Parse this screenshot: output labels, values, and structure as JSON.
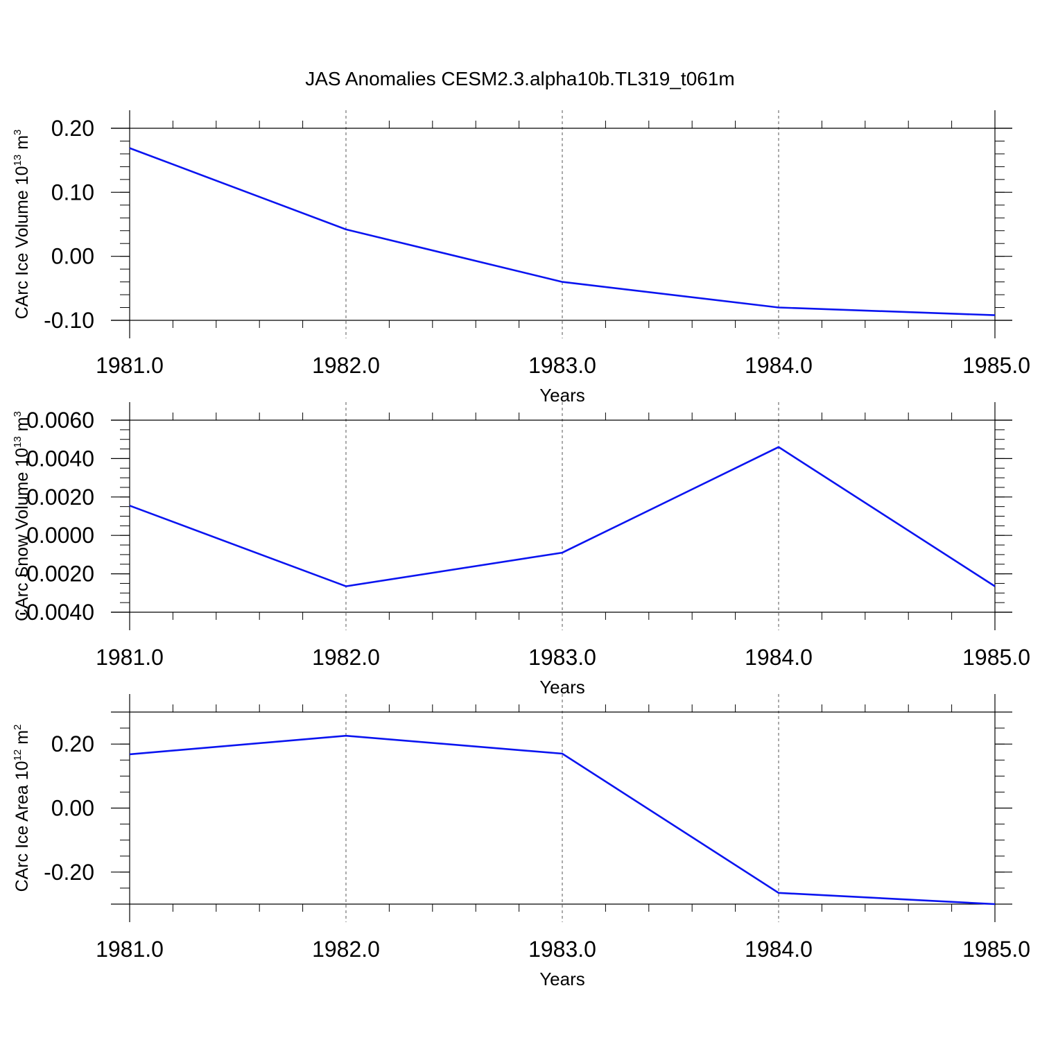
{
  "figure": {
    "title": "JAS Anomalies CESM2.3.alpha10b.TL319_t061m"
  },
  "colors": {
    "line": "#0a14f0",
    "axis": "#000000",
    "grid": "#555555",
    "background": "#ffffff"
  },
  "chart_data": [
    {
      "type": "line",
      "title": "JAS Anomalies CESM2.3.alpha10b.TL319_t061m",
      "xlabel": "Years",
      "ylabel": "CArc Ice Volume 10",
      "ylabel_exp": "13",
      "ylabel_unit": "m",
      "ylabel_unit_exp": "3",
      "x": [
        1981.0,
        1982.0,
        1983.0,
        1984.0,
        1985.0
      ],
      "values": [
        0.169,
        0.042,
        -0.04,
        -0.08,
        -0.092
      ],
      "xlim": [
        1981.0,
        1985.0
      ],
      "ylim": [
        -0.1,
        0.2
      ],
      "xticks": [
        "1981.0",
        "1982.0",
        "1983.0",
        "1984.0",
        "1985.0"
      ],
      "yticks": [
        {
          "v": 0.2,
          "label": "0.20"
        },
        {
          "v": 0.1,
          "label": "0.10"
        },
        {
          "v": 0.0,
          "label": "0.00"
        },
        {
          "v": -0.1,
          "label": "-0.10"
        }
      ],
      "y_minor_step": 0.02,
      "x_minor_step": 0.2,
      "grid": "vertical dashed at major x ticks"
    },
    {
      "type": "line",
      "xlabel": "Years",
      "ylabel": "CArc Snow Volume 10",
      "ylabel_exp": "13",
      "ylabel_unit": "m",
      "ylabel_unit_exp": "3",
      "x": [
        1981.0,
        1982.0,
        1983.0,
        1984.0,
        1985.0
      ],
      "values": [
        0.00155,
        -0.00265,
        -0.0009,
        0.0046,
        -0.00265
      ],
      "xlim": [
        1981.0,
        1985.0
      ],
      "ylim": [
        -0.004,
        0.006
      ],
      "xticks": [
        "1981.0",
        "1982.0",
        "1983.0",
        "1984.0",
        "1985.0"
      ],
      "yticks": [
        {
          "v": 0.006,
          "label": "0.0060"
        },
        {
          "v": 0.004,
          "label": "0.0040"
        },
        {
          "v": 0.002,
          "label": "0.0020"
        },
        {
          "v": 0.0,
          "label": "0.0000"
        },
        {
          "v": -0.002,
          "label": "-0.0020"
        },
        {
          "v": -0.004,
          "label": "-0.0040"
        }
      ],
      "y_minor_step": 0.0005,
      "x_minor_step": 0.2,
      "grid": "vertical dashed at major x ticks"
    },
    {
      "type": "line",
      "xlabel": "Years",
      "ylabel": "CArc Ice Area 10",
      "ylabel_exp": "12",
      "ylabel_unit": "m",
      "ylabel_unit_exp": "2",
      "x": [
        1981.0,
        1982.0,
        1983.0,
        1984.0,
        1985.0
      ],
      "values": [
        0.168,
        0.226,
        0.17,
        -0.265,
        -0.3
      ],
      "xlim": [
        1981.0,
        1985.0
      ],
      "ylim": [
        -0.3,
        0.3
      ],
      "xticks": [
        "1981.0",
        "1982.0",
        "1983.0",
        "1984.0",
        "1985.0"
      ],
      "yticks": [
        {
          "v": 0.2,
          "label": "0.20"
        },
        {
          "v": 0.0,
          "label": "0.00"
        },
        {
          "v": -0.2,
          "label": "-0.20"
        }
      ],
      "y_minor_step": 0.05,
      "x_minor_step": 0.2,
      "grid": "vertical dashed at major x ticks"
    }
  ]
}
